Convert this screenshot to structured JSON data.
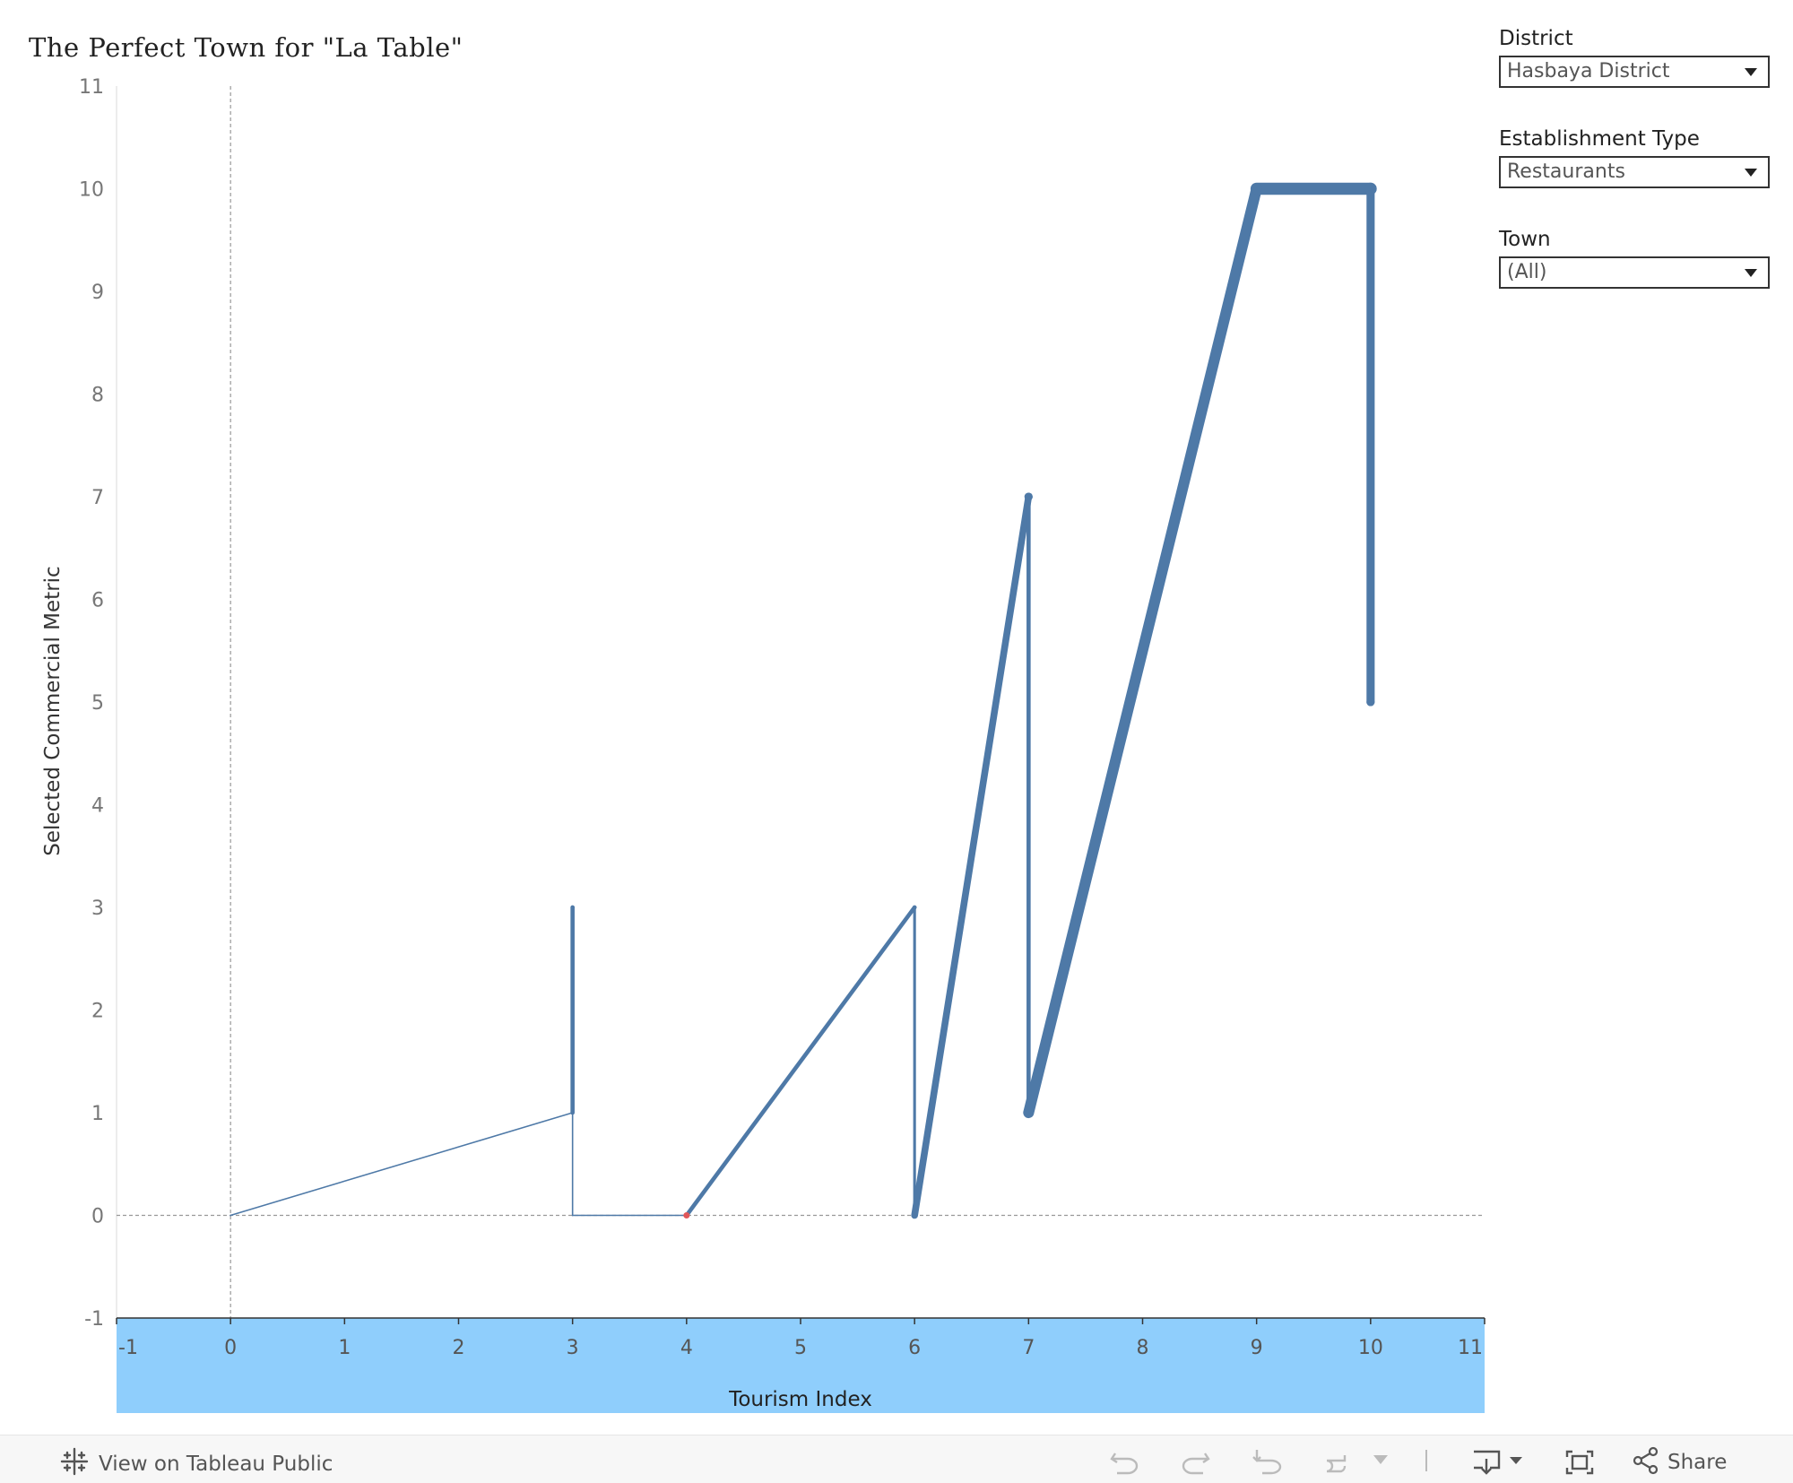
{
  "title": "The Perfect Town for \"La Table\"",
  "filters": [
    {
      "label": "District",
      "value": "Hasbaya District"
    },
    {
      "label": "Establishment Type",
      "value": "Restaurants"
    },
    {
      "label": "Town",
      "value": "(All)"
    }
  ],
  "chart_data": {
    "type": "line",
    "title": "The Perfect Town for \"La Table\"",
    "xlabel": "Tourism Index",
    "ylabel": "Selected Commercial Metric",
    "xlim": [
      -1,
      11
    ],
    "ylim": [
      -1,
      11
    ],
    "x_ticks": [
      "-1",
      "0",
      "1",
      "2",
      "3",
      "4",
      "5",
      "6",
      "7",
      "8",
      "9",
      "10",
      "11"
    ],
    "y_ticks": [
      "-1",
      "0",
      "1",
      "2",
      "3",
      "4",
      "5",
      "6",
      "7",
      "8",
      "9",
      "10",
      "11"
    ],
    "reference_lines": {
      "x": 0,
      "y": 0
    },
    "line_color": "#4e79a7",
    "highlight_color": "#e15759",
    "axis_band_color": "#8fcefc",
    "series": [
      {
        "x": [
          0,
          3,
          3,
          3,
          4,
          6,
          6,
          7,
          7,
          7,
          9,
          10,
          10
        ],
        "y": [
          0,
          1,
          3,
          0,
          0,
          3,
          0,
          7,
          7,
          1,
          10,
          10,
          5
        ],
        "weight": [
          1,
          1,
          3,
          1,
          1,
          3,
          2,
          5,
          6,
          3,
          8,
          9,
          6
        ]
      }
    ],
    "highlighted_point": {
      "x": 4,
      "y": 0
    }
  },
  "footer": {
    "view_label": "View on Tableau Public",
    "share_label": "Share"
  }
}
